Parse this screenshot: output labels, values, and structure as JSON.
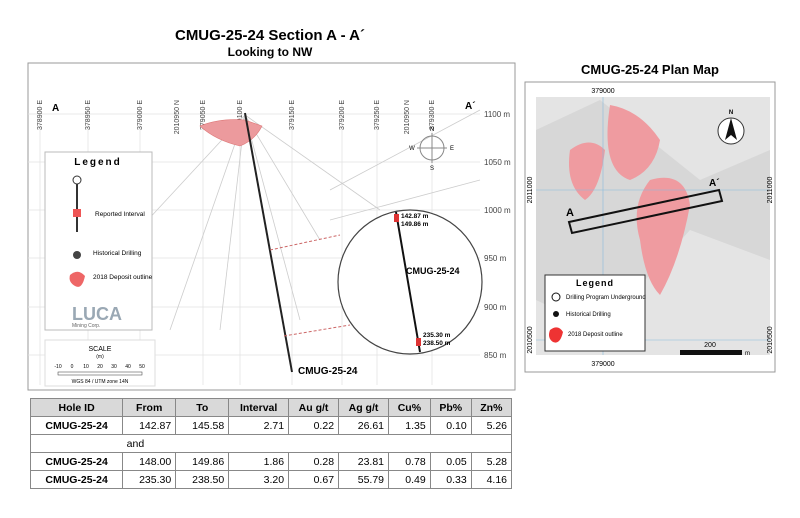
{
  "section": {
    "title": "CMUG-25-24  Section A - A´",
    "subtitle": "Looking to NW",
    "eastings": [
      "378900 E",
      "378950 E",
      "379000 E",
      "2010950 N",
      "379050 E",
      "379100 E",
      "379150 E",
      "379200 E",
      "379250 E",
      "2010950 N",
      "379300 E"
    ],
    "elevations": [
      "1100 m",
      "1050 m",
      "1000 m",
      "950 m",
      "900 m",
      "850 m"
    ],
    "end_a": "A",
    "end_a_prime": "A´",
    "hole_label": "CMUG-25-24",
    "inset": {
      "hole_label": "CMUG-25-24",
      "intercepts": [
        "142.87 m",
        "149.86 m",
        "235.30 m",
        "238.50 m"
      ]
    },
    "compass": [
      "N",
      "E",
      "S",
      "W"
    ],
    "legend": {
      "title": "Legend",
      "items": [
        "Reported Interval",
        "Historical Drilling",
        "2018 Deposit outline"
      ],
      "logo": "LUCA",
      "logo_sub": "Mining Corp."
    },
    "scale": {
      "title": "SCALE",
      "unit": "(m)",
      "ticks": [
        "-10",
        "0",
        "10",
        "20",
        "30",
        "40",
        "50"
      ],
      "datum": "WGS 84 / UTM zone 14N"
    }
  },
  "table": {
    "header": [
      "Hole ID",
      "From",
      "To",
      "Interval",
      "Au g/t",
      "Ag g/t",
      "Cu%",
      "Pb%",
      "Zn%"
    ],
    "rows": [
      [
        "CMUG-25-24",
        "142.87",
        "145.58",
        "2.71",
        "0.22",
        "26.61",
        "1.35",
        "0.10",
        "5.26"
      ],
      [
        "and"
      ],
      [
        "CMUG-25-24",
        "148.00",
        "149.86",
        "1.86",
        "0.28",
        "23.81",
        "0.78",
        "0.05",
        "5.28"
      ],
      [
        "CMUG-25-24",
        "235.30",
        "238.50",
        "3.20",
        "0.67",
        "55.79",
        "0.49",
        "0.33",
        "4.16"
      ]
    ]
  },
  "plan": {
    "title": "CMUG-25-24  Plan Map",
    "x_labels": [
      "379000",
      "379000"
    ],
    "y_labels": [
      "2011000",
      "2011000",
      "2010500",
      "2010500"
    ],
    "north": "N",
    "end_a": "A",
    "end_a_prime": "A´",
    "scale": "200",
    "scale_unit": "m",
    "legend": {
      "title": "Legend",
      "items": [
        "Drilling Program Underground",
        "Historical Drilling",
        "2018 Deposit outline"
      ]
    }
  }
}
